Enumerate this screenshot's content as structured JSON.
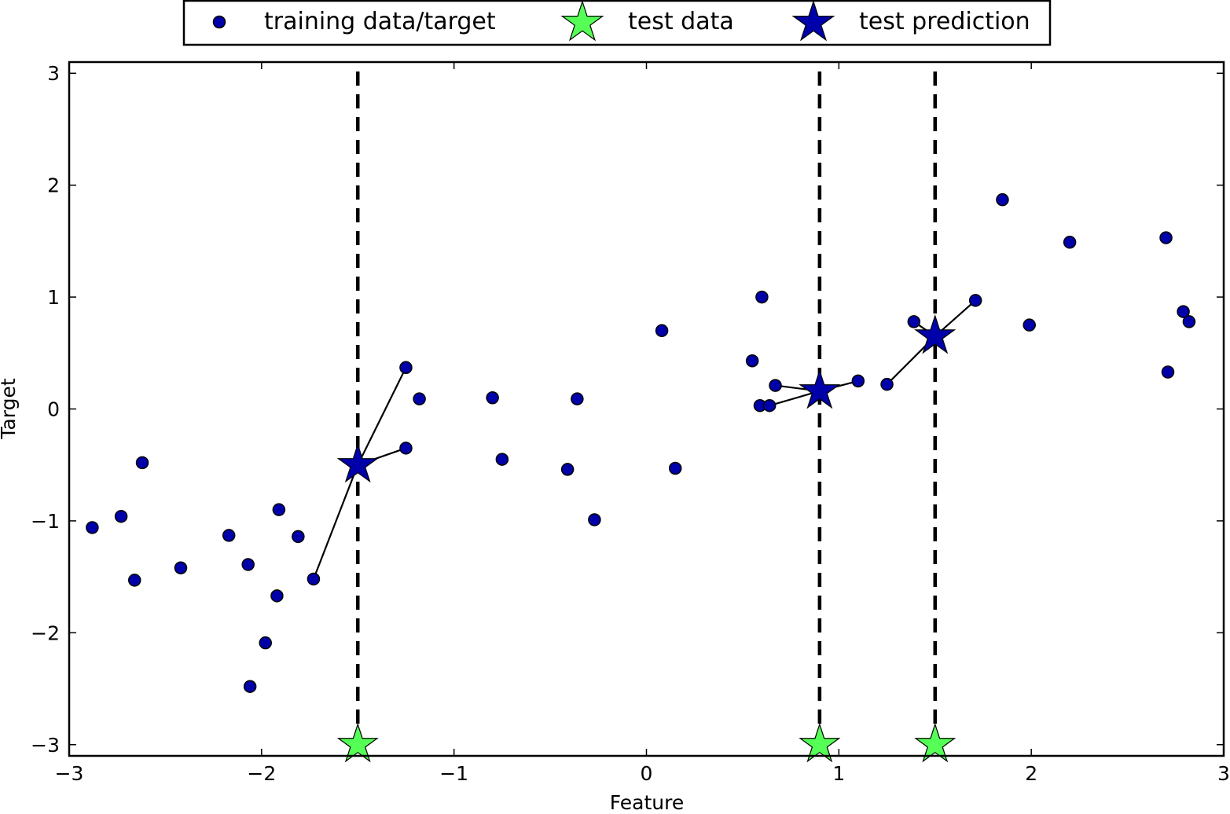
{
  "chart_data": {
    "type": "scatter",
    "title": "",
    "xlabel": "Feature",
    "ylabel": "Target",
    "xlim": [
      -3,
      3
    ],
    "ylim": [
      -3.1,
      3.1
    ],
    "xticks": [
      -3,
      -2,
      -1,
      0,
      1,
      2,
      3
    ],
    "xtick_labels": [
      "−3",
      "−2",
      "−1",
      "0",
      "1",
      "2",
      "3"
    ],
    "yticks": [
      -3,
      -2,
      -1,
      0,
      1,
      2,
      3
    ],
    "ytick_labels": [
      "−3",
      "−2",
      "−1",
      "0",
      "1",
      "2",
      "3"
    ],
    "grid": false,
    "legend_position": "top-center-outside",
    "legend": [
      {
        "label": "training data/target",
        "marker": "circle",
        "color": "#0000aa"
      },
      {
        "label": "test data",
        "marker": "star",
        "color": "#55ff55"
      },
      {
        "label": "test prediction",
        "marker": "star",
        "color": "#0000aa"
      }
    ],
    "colors": {
      "training": "#0000aa",
      "test_data": "#55ff55",
      "prediction": "#0000aa",
      "edge": "#000000"
    },
    "series": [
      {
        "name": "training data/target",
        "x": [
          -2.88,
          -2.73,
          -2.66,
          -2.62,
          -2.42,
          -2.17,
          -2.07,
          -2.06,
          -1.98,
          -1.92,
          -1.91,
          -1.81,
          -1.73,
          -1.25,
          -1.25,
          -1.18,
          -0.8,
          -0.75,
          -0.41,
          -0.36,
          -0.27,
          0.08,
          0.15,
          0.55,
          0.59,
          0.6,
          0.64,
          0.67,
          1.1,
          1.25,
          1.39,
          1.71,
          1.85,
          1.99,
          2.2,
          2.7,
          2.71,
          2.79,
          2.82
        ],
        "y": [
          -1.06,
          -0.96,
          -1.53,
          -0.48,
          -1.42,
          -1.13,
          -1.39,
          -2.48,
          -2.09,
          -1.67,
          -0.9,
          -1.14,
          -1.52,
          -0.35,
          0.37,
          0.09,
          0.1,
          -0.45,
          -0.54,
          0.09,
          -0.99,
          0.7,
          -0.53,
          0.43,
          0.03,
          1.0,
          0.03,
          0.21,
          0.25,
          0.22,
          0.78,
          0.97,
          1.87,
          0.75,
          1.49,
          1.53,
          0.33,
          0.87,
          0.78
        ]
      },
      {
        "name": "test data",
        "x": [
          -1.5,
          0.9,
          1.5
        ],
        "y": [
          -3.0,
          -3.0,
          -3.0
        ]
      },
      {
        "name": "test prediction",
        "x": [
          -1.5,
          0.9,
          1.5
        ],
        "y": [
          -0.5,
          0.16,
          0.65
        ]
      }
    ],
    "vlines": [
      {
        "x": -1.5,
        "style": "dashed"
      },
      {
        "x": 0.9,
        "style": "dashed"
      },
      {
        "x": 1.5,
        "style": "dashed"
      }
    ],
    "neighbor_lines": [
      {
        "from": [
          -1.5,
          -0.5
        ],
        "to": [
          -1.25,
          0.37
        ]
      },
      {
        "from": [
          -1.5,
          -0.5
        ],
        "to": [
          -1.25,
          -0.35
        ]
      },
      {
        "from": [
          -1.5,
          -0.5
        ],
        "to": [
          -1.73,
          -1.52
        ]
      },
      {
        "from": [
          0.9,
          0.16
        ],
        "to": [
          0.67,
          0.21
        ]
      },
      {
        "from": [
          0.9,
          0.16
        ],
        "to": [
          0.64,
          0.03
        ]
      },
      {
        "from": [
          0.9,
          0.16
        ],
        "to": [
          1.1,
          0.25
        ]
      },
      {
        "from": [
          1.5,
          0.65
        ],
        "to": [
          1.25,
          0.22
        ]
      },
      {
        "from": [
          1.5,
          0.65
        ],
        "to": [
          1.39,
          0.78
        ]
      },
      {
        "from": [
          1.5,
          0.65
        ],
        "to": [
          1.71,
          0.97
        ]
      }
    ]
  }
}
